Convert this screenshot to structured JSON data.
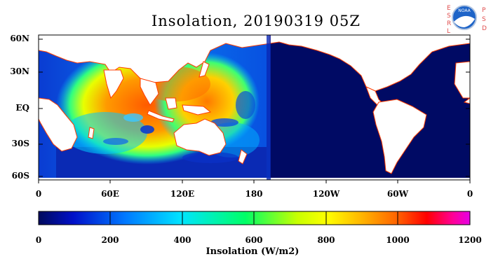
{
  "title": "Insolation, 20190319 05Z",
  "lat_labels": [
    "60N",
    "30N",
    "EQ",
    "30S",
    "60S"
  ],
  "lon_labels": [
    "0",
    "60E",
    "120E",
    "180",
    "120W",
    "60W",
    "0"
  ],
  "colorbar": {
    "title": "Insolation (W/m2)",
    "tick_labels": [
      "0",
      "200",
      "400",
      "600",
      "800",
      "1000",
      "1200"
    ],
    "colors": [
      "#000a5c",
      "#0010c8",
      "#0078ff",
      "#00e4ff",
      "#00ff66",
      "#c8ff00",
      "#ffff00",
      "#ffb400",
      "#ff6400",
      "#ff0000",
      "#ff0096",
      "#e600e6"
    ]
  },
  "logo": {
    "left_letters": "ESRL",
    "right_letters": "PSD",
    "emblem_icon": "noaa-logo-icon",
    "emblem_text": "NOAA"
  },
  "colors": {
    "ocean_dark": "#000a64",
    "land": "#ffffff",
    "coast": "#ff3c00"
  }
}
